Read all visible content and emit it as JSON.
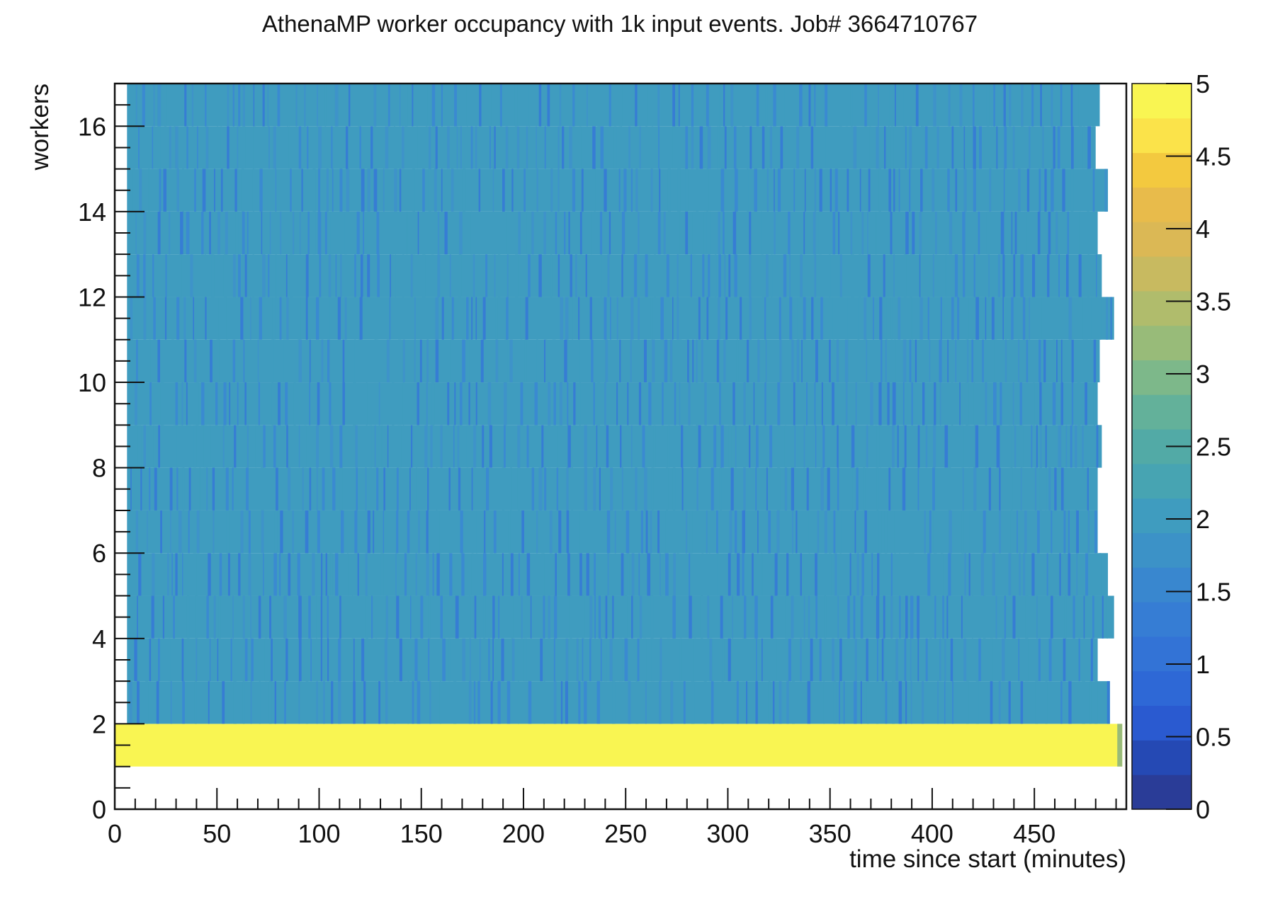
{
  "chart_data": {
    "type": "heatmap",
    "title": "AthenaMP worker occupancy with 1k input events. Job# 3664710767",
    "xlabel": "time since start (minutes)",
    "ylabel": "workers",
    "xlim": [
      0,
      495
    ],
    "ylim": [
      0,
      17
    ],
    "x_ticks": [
      "0",
      "50",
      "100",
      "150",
      "200",
      "250",
      "300",
      "350",
      "400",
      "450"
    ],
    "x_tick_values": [
      0,
      50,
      100,
      150,
      200,
      250,
      300,
      350,
      400,
      450
    ],
    "y_ticks": [
      "0",
      "2",
      "4",
      "6",
      "8",
      "10",
      "12",
      "14",
      "16"
    ],
    "y_tick_values": [
      0,
      2,
      4,
      6,
      8,
      10,
      12,
      14,
      16
    ],
    "colorbar": {
      "range": [
        0,
        5
      ],
      "ticks": [
        "0",
        "0.5",
        "1",
        "1.5",
        "2",
        "2.5",
        "3",
        "3.5",
        "4",
        "4.5",
        "5"
      ],
      "tick_values": [
        0,
        0.5,
        1,
        1.5,
        2,
        2.5,
        3,
        3.5,
        4,
        4.5,
        5
      ],
      "levels": 20,
      "colors": [
        "#2a3c97",
        "#2549b4",
        "#2a5ad0",
        "#2e68d6",
        "#3373d6",
        "#367dd4",
        "#3987cf",
        "#3c92c7",
        "#3f9cbf",
        "#47a4b2",
        "#52aaa6",
        "#63b19a",
        "#7db88a",
        "#98bb79",
        "#b0bc6c",
        "#c8ba60",
        "#dbb855",
        "#e8bb4b",
        "#f3c93f",
        "#fbe34a",
        "#f9f552"
      ]
    },
    "typical_values": {
      "workers_2_to_17": 2,
      "worker_1": 5
    },
    "rows": [
      {
        "worker": 1,
        "end_minute": 493,
        "value": 5
      },
      {
        "worker": 2,
        "end_minute": 487,
        "value": 2
      },
      {
        "worker": 3,
        "end_minute": 481,
        "value": 2
      },
      {
        "worker": 4,
        "end_minute": 489,
        "value": 2
      },
      {
        "worker": 5,
        "end_minute": 486,
        "value": 2
      },
      {
        "worker": 6,
        "end_minute": 481,
        "value": 2
      },
      {
        "worker": 7,
        "end_minute": 481,
        "value": 2
      },
      {
        "worker": 8,
        "end_minute": 483,
        "value": 2
      },
      {
        "worker": 9,
        "end_minute": 481,
        "value": 2
      },
      {
        "worker": 10,
        "end_minute": 482,
        "value": 2
      },
      {
        "worker": 11,
        "end_minute": 489,
        "value": 2
      },
      {
        "worker": 12,
        "end_minute": 483,
        "value": 2
      },
      {
        "worker": 13,
        "end_minute": 481,
        "value": 2
      },
      {
        "worker": 14,
        "end_minute": 486,
        "value": 2
      },
      {
        "worker": 15,
        "end_minute": 480,
        "value": 2
      },
      {
        "worker": 16,
        "end_minute": 482,
        "value": 2
      }
    ]
  }
}
